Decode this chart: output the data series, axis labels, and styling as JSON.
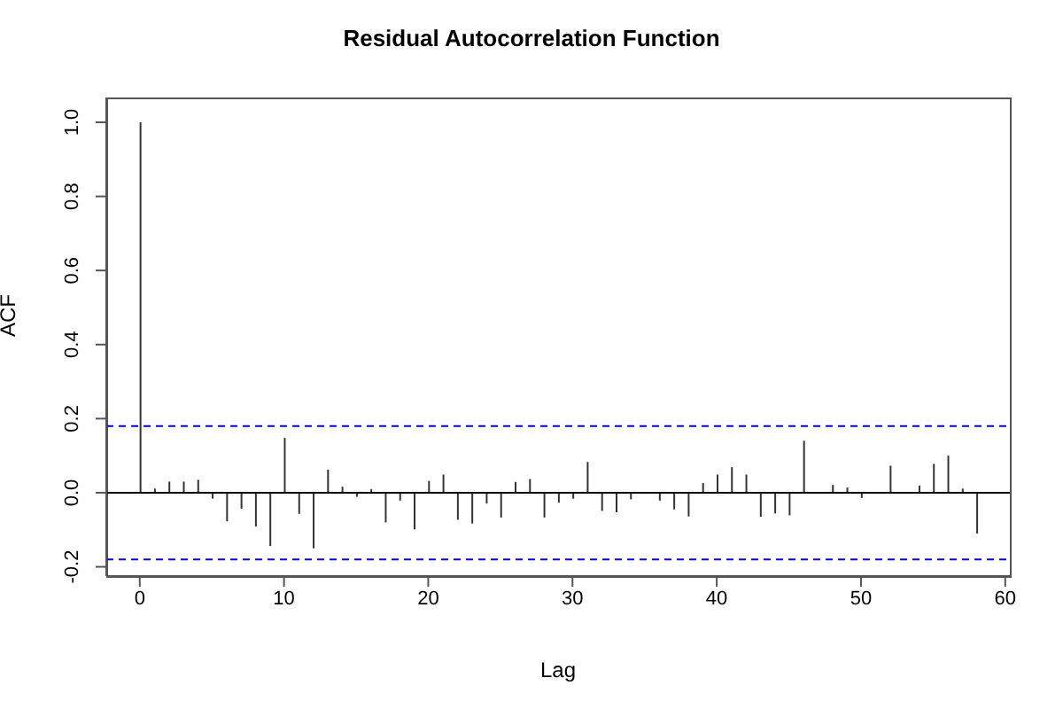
{
  "chart_data": {
    "type": "bar",
    "title": "Residual Autocorrelation Function",
    "xlabel": "Lag",
    "ylabel": "ACF",
    "x": [
      0,
      1,
      2,
      3,
      4,
      5,
      6,
      7,
      8,
      9,
      10,
      11,
      12,
      13,
      14,
      15,
      16,
      17,
      18,
      19,
      20,
      21,
      22,
      23,
      24,
      25,
      26,
      27,
      28,
      29,
      30,
      31,
      32,
      33,
      34,
      35,
      36,
      37,
      38,
      39,
      40,
      41,
      42,
      43,
      44,
      45,
      46,
      47,
      48,
      49,
      50,
      51,
      52,
      53,
      54,
      55,
      56,
      57,
      58
    ],
    "values": [
      1.0,
      0.011,
      0.03,
      0.03,
      0.035,
      -0.016,
      -0.077,
      -0.043,
      -0.091,
      -0.144,
      0.148,
      -0.057,
      -0.15,
      0.062,
      0.016,
      -0.011,
      0.01,
      -0.08,
      -0.021,
      -0.099,
      0.032,
      0.049,
      -0.073,
      -0.083,
      -0.029,
      -0.067,
      0.029,
      0.037,
      -0.067,
      -0.027,
      -0.016,
      0.083,
      -0.049,
      -0.053,
      -0.018,
      null,
      -0.021,
      -0.045,
      -0.064,
      0.026,
      0.049,
      0.069,
      0.049,
      -0.065,
      -0.056,
      -0.061,
      0.14,
      null,
      0.021,
      0.014,
      -0.014,
      null,
      0.073,
      null,
      0.019,
      0.078,
      0.1,
      0.011,
      -0.11
    ],
    "color": "#333333",
    "xlim": [
      -2.32,
      60.32
    ],
    "xticks": [
      0,
      10,
      20,
      30,
      40,
      50,
      60
    ],
    "ylim": [
      -0.225,
      1.067
    ],
    "yticks": [
      -0.2,
      {
        "value": 0,
        "label": "0.0"
      },
      0.2,
      0.4,
      0.6,
      0.8,
      {
        "value": 1,
        "label": "1.0"
      }
    ],
    "ref_lines": [
      {
        "axis": "y",
        "value": 0.18,
        "color": "#0000ff",
        "line_style": "dashed"
      },
      {
        "axis": "y",
        "value": -0.18,
        "color": "#0000ff",
        "line_style": "dashed"
      },
      {
        "axis": "y",
        "value": 0,
        "color": "#000000",
        "line_style": "solid"
      }
    ],
    "grid": false,
    "legend": false
  }
}
